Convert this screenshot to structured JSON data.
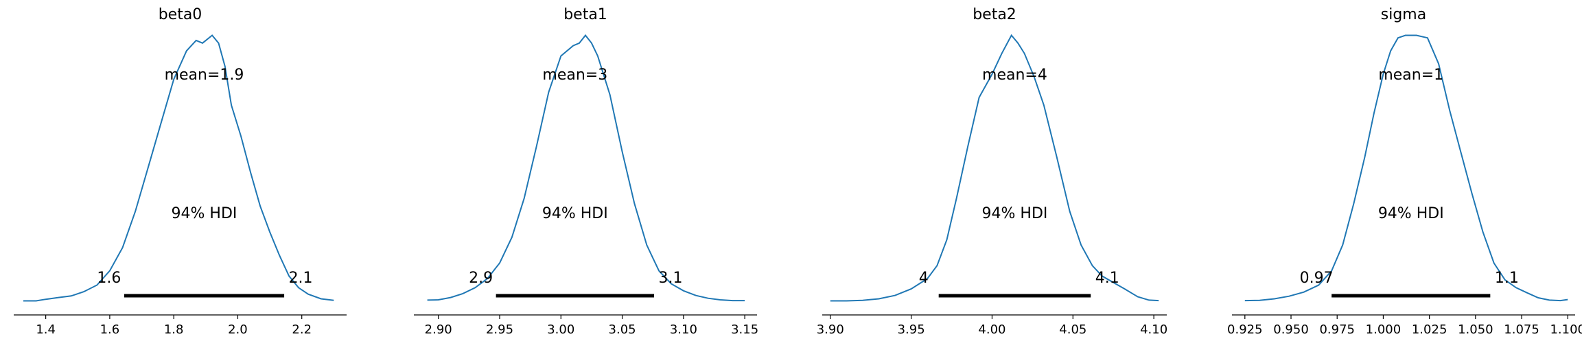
{
  "chart_data": [
    {
      "type": "area",
      "title": "beta0",
      "mean_label": "mean=1.9",
      "hdi_label": "94% HDI",
      "hdi_low_label": "1.6",
      "hdi_high_label": "2.1",
      "hdi": [
        1.645,
        2.145
      ],
      "xlim": [
        1.3,
        2.34
      ],
      "ylim": [
        0,
        1.08
      ],
      "xticks": [
        1.4,
        1.6,
        1.8,
        2.0,
        2.2
      ],
      "xtick_labels": [
        "1.4",
        "1.6",
        "1.8",
        "2.0",
        "2.2"
      ],
      "curve": {
        "x": [
          1.33,
          1.37,
          1.4,
          1.44,
          1.48,
          1.52,
          1.56,
          1.6,
          1.64,
          1.68,
          1.72,
          1.76,
          1.8,
          1.84,
          1.87,
          1.89,
          1.92,
          1.94,
          1.96,
          1.98,
          2.01,
          2.04,
          2.07,
          2.1,
          2.13,
          2.16,
          2.19,
          2.22,
          2.26,
          2.3
        ],
        "y": [
          0.004,
          0.004,
          0.01,
          0.017,
          0.023,
          0.04,
          0.065,
          0.12,
          0.21,
          0.35,
          0.52,
          0.69,
          0.86,
          0.97,
          1.01,
          1.0,
          1.03,
          1.0,
          0.91,
          0.76,
          0.64,
          0.5,
          0.37,
          0.27,
          0.18,
          0.1,
          0.055,
          0.03,
          0.012,
          0.006
        ]
      }
    },
    {
      "type": "area",
      "title": "beta1",
      "mean_label": "mean=3",
      "hdi_label": "94% HDI",
      "hdi_low_label": "2.9",
      "hdi_high_label": "3.1",
      "hdi": [
        2.947,
        3.076
      ],
      "xlim": [
        2.88,
        3.16
      ],
      "ylim": [
        0,
        1.08
      ],
      "xticks": [
        2.9,
        2.95,
        3.0,
        3.05,
        3.1,
        3.15
      ],
      "xtick_labels": [
        "2.90",
        "2.95",
        "3.00",
        "3.05",
        "3.10",
        "3.15"
      ],
      "curve": {
        "x": [
          2.891,
          2.9,
          2.91,
          2.92,
          2.93,
          2.94,
          2.95,
          2.96,
          2.97,
          2.98,
          2.99,
          3.0,
          3.01,
          3.015,
          3.02,
          3.025,
          3.03,
          3.04,
          3.05,
          3.06,
          3.07,
          3.075,
          3.08,
          3.09,
          3.1,
          3.11,
          3.12,
          3.13,
          3.14,
          3.15
        ],
        "y": [
          0.007,
          0.008,
          0.017,
          0.032,
          0.055,
          0.09,
          0.15,
          0.25,
          0.4,
          0.6,
          0.81,
          0.95,
          0.99,
          1.0,
          1.03,
          1.0,
          0.95,
          0.8,
          0.58,
          0.38,
          0.22,
          0.17,
          0.12,
          0.07,
          0.043,
          0.025,
          0.014,
          0.008,
          0.005,
          0.005
        ]
      }
    },
    {
      "type": "area",
      "title": "beta2",
      "mean_label": "mean=4",
      "hdi_label": "94% HDI",
      "hdi_low_label": "4",
      "hdi_high_label": "4.1",
      "hdi": [
        3.967,
        4.061
      ],
      "xlim": [
        3.895,
        4.108
      ],
      "ylim": [
        0,
        1.08
      ],
      "xticks": [
        3.9,
        3.95,
        4.0,
        4.05,
        4.1
      ],
      "xtick_labels": [
        "3.90",
        "3.95",
        "4.00",
        "4.05",
        "4.10"
      ],
      "curve": {
        "x": [
          3.9,
          3.91,
          3.92,
          3.93,
          3.94,
          3.95,
          3.96,
          3.966,
          3.972,
          3.978,
          3.985,
          3.992,
          4.0,
          4.006,
          4.012,
          4.016,
          4.02,
          4.026,
          4.032,
          4.04,
          4.048,
          4.055,
          4.062,
          4.068,
          4.075,
          4.082,
          4.09,
          4.097,
          4.103
        ],
        "y": [
          0.004,
          0.004,
          0.006,
          0.012,
          0.025,
          0.05,
          0.09,
          0.14,
          0.24,
          0.4,
          0.6,
          0.79,
          0.88,
          0.96,
          1.03,
          1.0,
          0.96,
          0.87,
          0.76,
          0.56,
          0.35,
          0.22,
          0.14,
          0.1,
          0.075,
          0.05,
          0.02,
          0.007,
          0.005
        ]
      }
    },
    {
      "type": "area",
      "title": "sigma",
      "mean_label": "mean=1",
      "hdi_label": "94% HDI",
      "hdi_low_label": "0.97",
      "hdi_high_label": "1.1",
      "hdi": [
        0.972,
        1.058
      ],
      "xlim": [
        0.918,
        1.104
      ],
      "ylim": [
        0,
        1.08
      ],
      "xticks": [
        0.925,
        0.95,
        0.975,
        1.0,
        1.025,
        1.05,
        1.075,
        1.1
      ],
      "xtick_labels": [
        "0.925",
        "0.950",
        "0.975",
        "1.000",
        "1.025",
        "1.050",
        "1.075",
        "1.100"
      ],
      "curve": {
        "x": [
          0.925,
          0.933,
          0.941,
          0.949,
          0.957,
          0.965,
          0.972,
          0.978,
          0.984,
          0.99,
          0.995,
          1.0,
          1.004,
          1.008,
          1.012,
          1.018,
          1.024,
          1.03,
          1.036,
          1.042,
          1.048,
          1.054,
          1.06,
          1.066,
          1.072,
          1.078,
          1.084,
          1.09,
          1.096,
          1.1
        ],
        "y": [
          0.005,
          0.006,
          0.012,
          0.022,
          0.038,
          0.065,
          0.12,
          0.22,
          0.38,
          0.56,
          0.73,
          0.88,
          0.97,
          1.02,
          1.03,
          1.03,
          1.02,
          0.92,
          0.74,
          0.58,
          0.42,
          0.27,
          0.15,
          0.085,
          0.055,
          0.035,
          0.016,
          0.007,
          0.005,
          0.009
        ]
      }
    }
  ],
  "colors": {
    "curve": "#1f77b4",
    "hdi_bar": "#000000",
    "axis": "#000000",
    "background": "#ffffff"
  }
}
